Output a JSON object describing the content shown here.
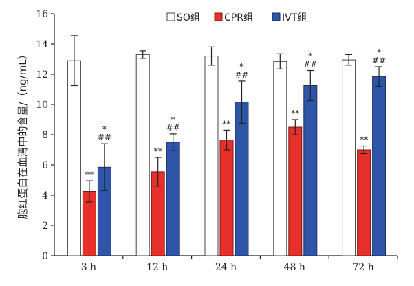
{
  "chart_data": {
    "type": "bar",
    "title": "",
    "xlabel": "",
    "ylabel": "胞红蛋白在血清中的含量/（ng/mL）",
    "ylim": [
      0,
      16
    ],
    "yticks": [
      0,
      2,
      4,
      6,
      8,
      10,
      12,
      14,
      16
    ],
    "categories": [
      "3 h",
      "12 h",
      "24 h",
      "48 h",
      "72 h"
    ],
    "legend_position": "top-right",
    "series": [
      {
        "name": "SO组",
        "color": "#ffffff",
        "stroke": "#444444",
        "values": [
          12.9,
          13.3,
          13.2,
          12.85,
          12.95
        ],
        "errors": [
          1.65,
          0.25,
          0.6,
          0.5,
          0.35
        ],
        "annotations": [
          "",
          "",
          "",
          "",
          ""
        ]
      },
      {
        "name": "CPR组",
        "color": "#e8302a",
        "stroke": "#7a1a12",
        "values": [
          4.25,
          5.55,
          7.65,
          8.5,
          7.0
        ],
        "errors": [
          0.7,
          0.95,
          0.65,
          0.5,
          0.25
        ],
        "annotations": [
          "**",
          "**",
          "**",
          "**",
          "**"
        ]
      },
      {
        "name": "IVT组",
        "color": "#2e55a8",
        "stroke": "#1a2f66",
        "values": [
          5.85,
          7.5,
          10.15,
          11.25,
          11.85
        ],
        "errors": [
          1.55,
          0.55,
          1.4,
          1.0,
          0.65
        ],
        "annotations": [
          "*\n##",
          "*\n##",
          "*\n##",
          "*\n##",
          "*\n##"
        ]
      }
    ]
  }
}
